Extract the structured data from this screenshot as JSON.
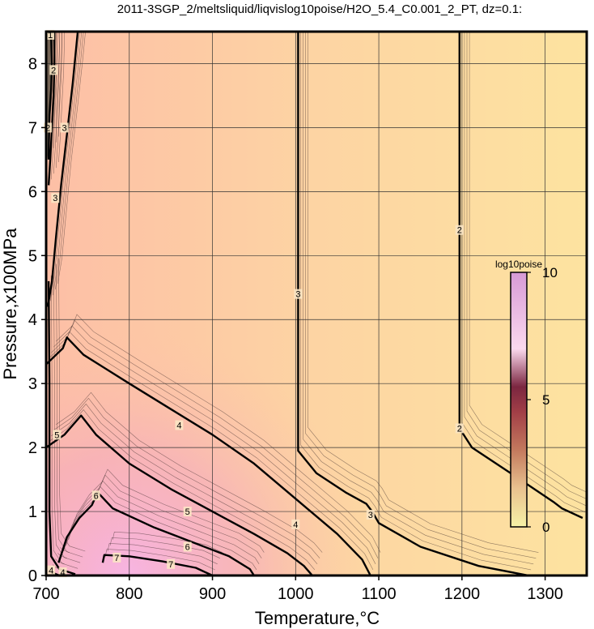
{
  "chart_data": {
    "type": "contour",
    "title": "2011-3SGP_2/meltsliquid/liqvislog10poise/H2O_5.4_C0.001_2_PT, dz=0.1:",
    "xlabel": "Temperature,°C",
    "ylabel": "Pressure,x100MPa",
    "xlim": [
      700,
      1350
    ],
    "ylim": [
      0,
      8.5
    ],
    "xticks": [
      "700",
      "800",
      "900",
      "1000",
      "1100",
      "1200",
      "1300"
    ],
    "yticks": [
      "0",
      "1",
      "2",
      "3",
      "4",
      "5",
      "6",
      "7",
      "8"
    ],
    "grid": true,
    "colorbar": {
      "label": "log10poise",
      "range": [
        0,
        10
      ],
      "ticks": [
        "0",
        "5",
        "10"
      ],
      "colors": [
        "#f6f2a6",
        "#e9c28f",
        "#c47a5e",
        "#a23f47",
        "#7b2640",
        "#fbd9ee",
        "#d79ad6"
      ]
    },
    "background_gradient": [
      "#fdbfa6",
      "#fdd4a3",
      "#fde3a0"
    ],
    "contour_levels_labeled": [
      {
        "level": "1",
        "points": [
          [
            706,
            8.4
          ],
          [
            707,
            8.0
          ],
          [
            706,
            7.6
          ],
          [
            704,
            7.2
          ],
          [
            703,
            6.5
          ]
        ]
      },
      {
        "level": "2",
        "points": [
          [
            710,
            8.5
          ],
          [
            710,
            8.0
          ],
          [
            709,
            7.5
          ],
          [
            707,
            7.0
          ],
          [
            705,
            6.5
          ],
          [
            703,
            6.1
          ]
        ]
      },
      {
        "level": "3",
        "points": [
          [
            738,
            8.5
          ],
          [
            732,
            7.7
          ],
          [
            726,
            7.0
          ],
          [
            718,
            6.1
          ],
          [
            712,
            5.3
          ],
          [
            707,
            4.6
          ],
          [
            702,
            4.2
          ]
        ]
      },
      {
        "level": "2",
        "points": [
          [
            1197,
            8.5
          ],
          [
            1197,
            5.5
          ],
          [
            1197,
            2.3
          ],
          [
            1212,
            2.0
          ],
          [
            1270,
            1.5
          ],
          [
            1310,
            1.15
          ],
          [
            1320,
            1.05
          ],
          [
            1345,
            0.9
          ]
        ]
      },
      {
        "level": "3",
        "points": [
          [
            1003,
            8.5
          ],
          [
            1003,
            5.0
          ],
          [
            1003,
            2.3
          ],
          [
            1003,
            1.95
          ],
          [
            1025,
            1.6
          ],
          [
            1060,
            1.3
          ],
          [
            1085,
            1.12
          ],
          [
            1092,
            1.0
          ],
          [
            1100,
            0.82
          ],
          [
            1150,
            0.45
          ],
          [
            1220,
            0.15
          ],
          [
            1280,
            0.0
          ]
        ]
      },
      {
        "level": "4",
        "points": [
          [
            700,
            3.3
          ],
          [
            720,
            3.55
          ],
          [
            725,
            3.72
          ],
          [
            745,
            3.45
          ],
          [
            800,
            3.0
          ],
          [
            850,
            2.6
          ],
          [
            900,
            2.2
          ],
          [
            950,
            1.75
          ],
          [
            1000,
            1.2
          ],
          [
            1050,
            0.65
          ],
          [
            1080,
            0.25
          ],
          [
            1090,
            0.0
          ]
        ]
      },
      {
        "level": "5",
        "points": [
          [
            700,
            2.0
          ],
          [
            722,
            2.2
          ],
          [
            742,
            2.5
          ],
          [
            760,
            2.2
          ],
          [
            800,
            1.75
          ],
          [
            850,
            1.35
          ],
          [
            900,
            1.0
          ],
          [
            950,
            0.65
          ],
          [
            990,
            0.35
          ],
          [
            1010,
            0.15
          ],
          [
            1020,
            0.0
          ]
        ]
      },
      {
        "level": "6",
        "points": [
          [
            715,
            0.2
          ],
          [
            725,
            0.6
          ],
          [
            740,
            0.9
          ],
          [
            755,
            1.1
          ],
          [
            762,
            1.3
          ],
          [
            780,
            1.05
          ],
          [
            830,
            0.75
          ],
          [
            880,
            0.5
          ],
          [
            920,
            0.3
          ],
          [
            945,
            0.1
          ],
          [
            950,
            0.0
          ]
        ]
      },
      {
        "level": "7",
        "points": [
          [
            768,
            0.2
          ],
          [
            770,
            0.32
          ],
          [
            800,
            0.3
          ],
          [
            840,
            0.22
          ],
          [
            880,
            0.12
          ],
          [
            900,
            0.0
          ]
        ]
      },
      {
        "level": "4",
        "points": [
          [
            703,
            4.6
          ],
          [
            704,
            3.0
          ],
          [
            704,
            1.0
          ],
          [
            706,
            0.3
          ],
          [
            716,
            0.1
          ],
          [
            735,
            0.02
          ]
        ]
      },
      {
        "level": "4",
        "points": [
          [
            705,
            0.08
          ],
          [
            708,
            0.04
          ],
          [
            716,
            0.0
          ]
        ]
      }
    ],
    "contour_labels": [
      {
        "text": "1",
        "x": 705,
        "y": 8.45
      },
      {
        "text": "2",
        "x": 709,
        "y": 7.9
      },
      {
        "text": "2",
        "x": 702,
        "y": 7.0
      },
      {
        "text": "3",
        "x": 722,
        "y": 7.0
      },
      {
        "text": "3",
        "x": 711,
        "y": 5.9
      },
      {
        "text": "3",
        "x": 1003,
        "y": 4.4
      },
      {
        "text": "2",
        "x": 1197,
        "y": 5.4
      },
      {
        "text": "2",
        "x": 1197,
        "y": 2.3
      },
      {
        "text": "4",
        "x": 860,
        "y": 2.35
      },
      {
        "text": "5",
        "x": 713,
        "y": 2.2
      },
      {
        "text": "5",
        "x": 870,
        "y": 1.0
      },
      {
        "text": "6",
        "x": 760,
        "y": 1.25
      },
      {
        "text": "6",
        "x": 870,
        "y": 0.45
      },
      {
        "text": "4",
        "x": 1000,
        "y": 0.8
      },
      {
        "text": "3",
        "x": 1090,
        "y": 0.95
      },
      {
        "text": "7",
        "x": 785,
        "y": 0.28
      },
      {
        "text": "7",
        "x": 850,
        "y": 0.18
      },
      {
        "text": "4",
        "x": 706,
        "y": 0.08
      },
      {
        "text": "4",
        "x": 720,
        "y": 0.05
      }
    ]
  }
}
